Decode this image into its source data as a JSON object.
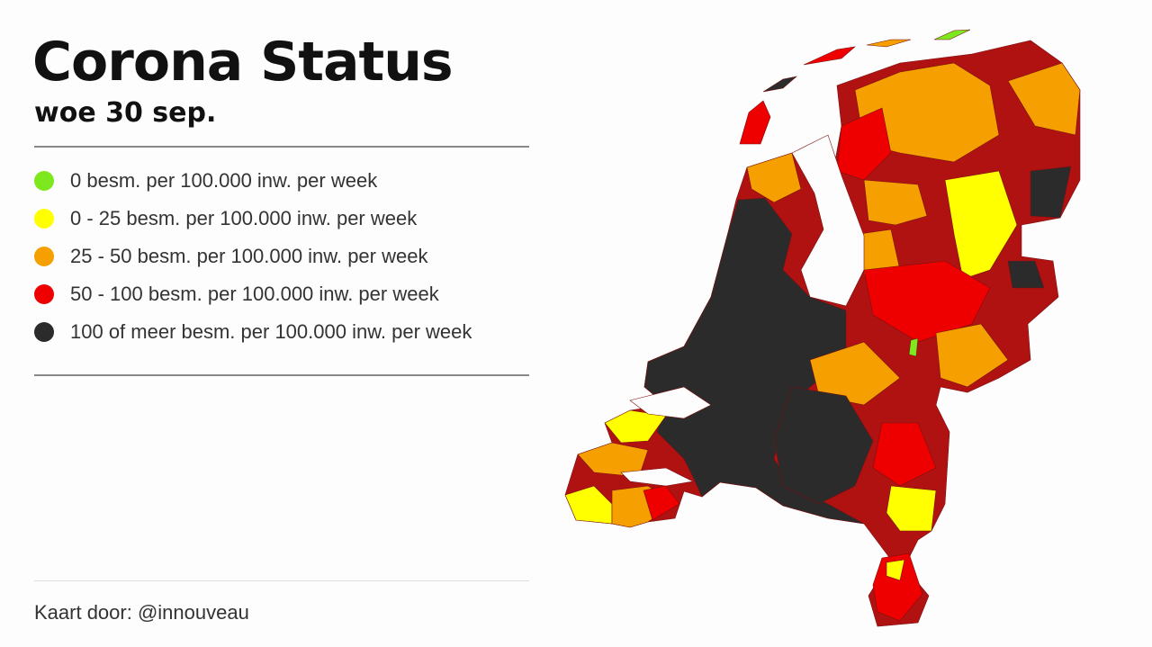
{
  "header": {
    "title": "Corona Status",
    "subtitle": "woe 30 sep."
  },
  "legend": [
    {
      "color": "#7ee81e",
      "label": "0 besm. per 100.000 inw. per week"
    },
    {
      "color": "#ffff00",
      "label": "0 - 25 besm. per 100.000 inw. per week"
    },
    {
      "color": "#f5a000",
      "label": "25 - 50 besm. per 100.000 inw. per week"
    },
    {
      "color": "#ee0000",
      "label": "50 - 100 besm. per 100.000 inw. per week"
    },
    {
      "color": "#2b2b2b",
      "label": "100 of meer  besm. per 100.000 inw. per week"
    }
  ],
  "footer": {
    "credit": "Kaart door: @innouveau"
  }
}
